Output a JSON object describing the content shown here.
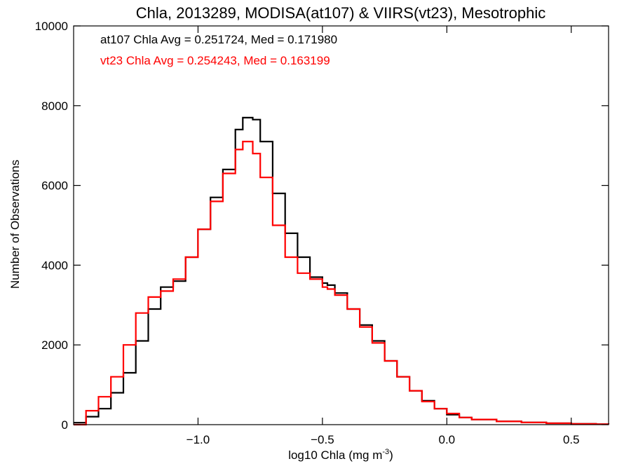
{
  "chart_data": {
    "type": "line",
    "title": "Chla, 2013289, MODISA(at107) & VIIRS(vt23), Mesotrophic",
    "xlabel": "log10 Chla (mg m",
    "xlabel_sup": "-3",
    "xlabel_suffix": ")",
    "ylabel": "Number of Observations",
    "xlim": [
      -1.5,
      0.65
    ],
    "ylim": [
      0,
      10000
    ],
    "x_ticks": [
      -1.0,
      -0.5,
      0.0,
      0.5
    ],
    "x_tick_labels": [
      "−1.0",
      "−0.5",
      "0.0",
      "0.5"
    ],
    "y_ticks": [
      0,
      2000,
      4000,
      6000,
      8000,
      10000
    ],
    "y_tick_labels": [
      "0",
      "2000",
      "4000",
      "6000",
      "8000",
      "10000"
    ],
    "grid": false,
    "annotations": [
      {
        "text": "at107 Chla Avg = 0.251724, Med = 0.171980",
        "color": "#000000"
      },
      {
        "text": "vt23 Chla Avg = 0.254243, Med = 0.163199",
        "color": "#ff0000"
      }
    ],
    "x": [
      -1.5,
      -1.45,
      -1.4,
      -1.35,
      -1.3,
      -1.25,
      -1.2,
      -1.15,
      -1.1,
      -1.05,
      -1.0,
      -0.95,
      -0.9,
      -0.85,
      -0.82,
      -0.8,
      -0.78,
      -0.75,
      -0.7,
      -0.65,
      -0.6,
      -0.55,
      -0.5,
      -0.48,
      -0.45,
      -0.4,
      -0.35,
      -0.3,
      -0.25,
      -0.2,
      -0.15,
      -0.1,
      -0.05,
      0.0,
      0.05,
      0.1,
      0.2,
      0.3,
      0.4,
      0.5,
      0.6,
      0.65
    ],
    "series": [
      {
        "name": "at107",
        "color": "#000000",
        "values": [
          50,
          200,
          400,
          800,
          1300,
          2100,
          2900,
          3450,
          3600,
          4200,
          4900,
          5700,
          6400,
          7400,
          7700,
          7700,
          7650,
          7100,
          5800,
          4800,
          4200,
          3700,
          3550,
          3500,
          3300,
          2900,
          2500,
          2100,
          1600,
          1200,
          850,
          600,
          400,
          250,
          180,
          130,
          80,
          55,
          35,
          20,
          12,
          10
        ]
      },
      {
        "name": "vt23",
        "color": "#ff0000",
        "values": [
          0,
          350,
          700,
          1200,
          2000,
          2800,
          3200,
          3350,
          3650,
          4200,
          4900,
          5600,
          6300,
          6900,
          7100,
          7100,
          6800,
          6200,
          5000,
          4200,
          3800,
          3650,
          3450,
          3400,
          3250,
          2900,
          2450,
          2050,
          1600,
          1200,
          850,
          580,
          400,
          280,
          180,
          130,
          80,
          55,
          35,
          20,
          12,
          10
        ]
      }
    ]
  }
}
